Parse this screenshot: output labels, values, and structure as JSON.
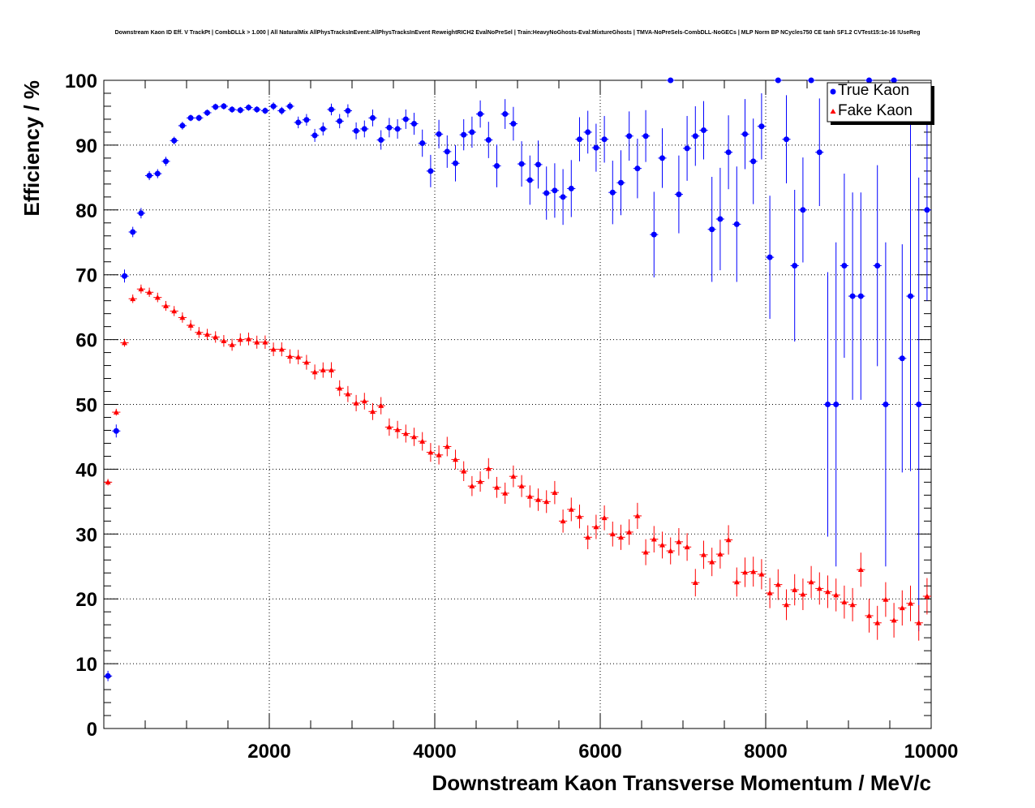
{
  "chart_data": {
    "type": "scatter",
    "title": "Downstream Kaon ID Eff. V TrackPt | CombDLLk > 1.000 | All NaturalMix AllPhysTracksInEvent:AllPhysTracksInEvent ReweightRICH2 EvalNoPreSel | Train:HeavyNoGhosts-Eval:MixtureGhosts | TMVA-NoPreSels-CombDLL-NoGECs | MLP Norm BP NCycles750 CE tanh SF1.2 CVTest15:1e-16 !UseReg",
    "xlabel": "Downstream Kaon Transverse Momentum / MeV/c",
    "ylabel": "Efficiency / %",
    "xlim": [
      0,
      10000
    ],
    "ylim": [
      0,
      100
    ],
    "grid": true,
    "legend_position": "top-right",
    "xticks": [
      2000,
      4000,
      6000,
      8000,
      10000
    ],
    "xtick_labels": [
      "2000",
      "4000",
      "6000",
      "8000",
      "10000"
    ],
    "yticks": [
      0,
      10,
      20,
      30,
      40,
      50,
      60,
      70,
      80,
      90,
      100
    ],
    "ytick_labels": [
      "0",
      "10",
      "20",
      "30",
      "40",
      "50",
      "60",
      "70",
      "80",
      "90",
      "100"
    ],
    "series": [
      {
        "name": "True Kaon",
        "color": "#0000ff",
        "marker": "circle",
        "x": [
          50,
          150,
          250,
          350,
          450,
          550,
          650,
          750,
          850,
          950,
          1050,
          1150,
          1250,
          1350,
          1450,
          1550,
          1650,
          1750,
          1850,
          1950,
          2050,
          2150,
          2250,
          2350,
          2450,
          2550,
          2650,
          2750,
          2850,
          2950,
          3050,
          3150,
          3250,
          3350,
          3450,
          3550,
          3650,
          3750,
          3850,
          3950,
          4050,
          4150,
          4250,
          4350,
          4450,
          4550,
          4650,
          4750,
          4850,
          4950,
          5050,
          5150,
          5250,
          5350,
          5450,
          5550,
          5650,
          5750,
          5850,
          5950,
          6050,
          6150,
          6250,
          6350,
          6450,
          6550,
          6650,
          6750,
          6850,
          6950,
          7050,
          7150,
          7250,
          7350,
          7450,
          7550,
          7650,
          7750,
          7850,
          7950,
          8050,
          8150,
          8250,
          8350,
          8450,
          8550,
          8650,
          8750,
          8850,
          8950,
          9050,
          9150,
          9250,
          9350,
          9450,
          9550,
          9650,
          9750,
          9850,
          9950
        ],
        "y": [
          8.1,
          45.9,
          69.8,
          76.6,
          79.5,
          85.3,
          85.6,
          87.5,
          90.7,
          93.0,
          94.2,
          94.2,
          95.0,
          95.9,
          96.0,
          95.5,
          95.4,
          95.8,
          95.5,
          95.3,
          96.0,
          95.3,
          96.0,
          93.5,
          93.9,
          91.5,
          92.5,
          95.5,
          93.7,
          95.3,
          92.2,
          92.5,
          94.2,
          90.8,
          92.7,
          92.5,
          94.0,
          93.3,
          90.3,
          86.0,
          91.7,
          89.0,
          87.2,
          91.6,
          92.0,
          94.8,
          90.8,
          86.8,
          94.8,
          93.3,
          87.1,
          84.6,
          87.0,
          82.6,
          83.0,
          82.0,
          83.3,
          90.9,
          92.0,
          89.6,
          90.9,
          82.7,
          84.2,
          91.4,
          86.4,
          91.4,
          76.2,
          88.0,
          100.0,
          82.4,
          89.5,
          91.4,
          92.3,
          77.0,
          78.6,
          88.9,
          77.8,
          91.7,
          87.5,
          92.9,
          72.7,
          100.0,
          90.9,
          71.4,
          80.0,
          100.0,
          88.9,
          50.0,
          50.0,
          71.4,
          66.7,
          66.7,
          100.0,
          71.4,
          50.0,
          100.0,
          57.1,
          66.7,
          50.0,
          80.0
        ],
        "yerr": [
          0.8,
          1.0,
          1.0,
          0.8,
          0.8,
          0.7,
          0.7,
          0.7,
          0.6,
          0.6,
          0.5,
          0.5,
          0.5,
          0.5,
          0.5,
          0.5,
          0.5,
          0.5,
          0.5,
          0.5,
          0.6,
          0.6,
          0.6,
          0.9,
          0.9,
          1.0,
          1.0,
          0.9,
          1.1,
          1.0,
          1.3,
          1.3,
          1.3,
          1.5,
          1.5,
          1.5,
          1.5,
          1.7,
          2.1,
          2.5,
          2.2,
          2.5,
          2.8,
          2.4,
          2.4,
          2.1,
          2.8,
          3.3,
          2.3,
          2.6,
          3.5,
          3.8,
          3.7,
          4.1,
          4.2,
          4.3,
          4.4,
          3.4,
          3.3,
          3.7,
          3.6,
          4.9,
          5.0,
          3.8,
          4.6,
          4.0,
          6.6,
          4.6,
          0.0,
          6.0,
          5.0,
          4.6,
          4.5,
          8.1,
          7.9,
          5.7,
          8.9,
          5.4,
          6.6,
          5.1,
          9.5,
          0.0,
          6.8,
          11.7,
          8.1,
          0.0,
          8.3,
          20.4,
          25.0,
          14.2,
          16.0,
          16.0,
          0.0,
          15.5,
          25.0,
          0.0,
          17.6,
          27.0,
          35.0,
          14.0
        ]
      },
      {
        "name": "Fake Kaon",
        "color": "#ff0000",
        "marker": "triangle",
        "x": [
          50,
          150,
          250,
          350,
          450,
          550,
          650,
          750,
          850,
          950,
          1050,
          1150,
          1250,
          1350,
          1450,
          1550,
          1650,
          1750,
          1850,
          1950,
          2050,
          2150,
          2250,
          2350,
          2450,
          2550,
          2650,
          2750,
          2850,
          2950,
          3050,
          3150,
          3250,
          3350,
          3450,
          3550,
          3650,
          3750,
          3850,
          3950,
          4050,
          4150,
          4250,
          4350,
          4450,
          4550,
          4650,
          4750,
          4850,
          4950,
          5050,
          5150,
          5250,
          5350,
          5450,
          5550,
          5650,
          5750,
          5850,
          5950,
          6050,
          6150,
          6250,
          6350,
          6450,
          6550,
          6650,
          6750,
          6850,
          6950,
          7050,
          7150,
          7250,
          7350,
          7450,
          7550,
          7650,
          7750,
          7850,
          7950,
          8050,
          8150,
          8250,
          8350,
          8450,
          8550,
          8650,
          8750,
          8850,
          8950,
          9050,
          9150,
          9250,
          9350,
          9450,
          9550,
          9650,
          9750,
          9850,
          9950
        ],
        "y": [
          38.0,
          48.8,
          59.5,
          66.3,
          67.8,
          67.3,
          66.5,
          65.2,
          64.4,
          63.4,
          62.2,
          61.1,
          60.8,
          60.4,
          59.8,
          59.2,
          60.0,
          60.1,
          59.6,
          59.6,
          58.5,
          58.5,
          57.4,
          57.3,
          56.5,
          55.0,
          55.3,
          55.3,
          52.5,
          51.6,
          50.2,
          50.5,
          48.9,
          49.8,
          46.5,
          46.1,
          45.5,
          45.0,
          44.3,
          42.6,
          42.2,
          43.5,
          41.5,
          39.7,
          37.4,
          38.1,
          40.1,
          37.2,
          36.3,
          38.9,
          37.4,
          35.8,
          35.3,
          35.0,
          36.4,
          32.0,
          33.8,
          32.7,
          29.5,
          31.1,
          32.5,
          30.0,
          29.5,
          30.3,
          32.8,
          27.2,
          29.2,
          28.3,
          27.4,
          28.8,
          28.0,
          22.5,
          26.8,
          25.7,
          26.9,
          29.1,
          22.6,
          24.1,
          24.2,
          23.8,
          20.9,
          22.2,
          19.1,
          21.4,
          20.7,
          22.6,
          21.6,
          21.1,
          20.6,
          19.5,
          19.1,
          24.5,
          17.4,
          16.3,
          19.9,
          16.7,
          18.6,
          19.3,
          16.3,
          20.4
        ]
      }
    ]
  }
}
